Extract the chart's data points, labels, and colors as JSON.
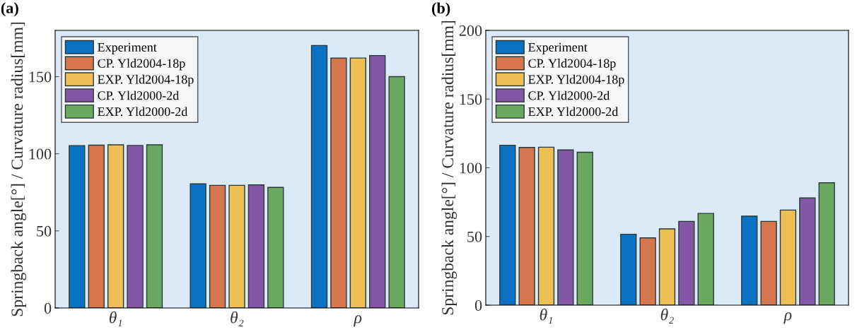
{
  "chart_data": [
    {
      "type": "bar",
      "title": "(a)",
      "ylabel": "Springback angle[°] / Curvature radius[mm]",
      "categories": [
        "θ₁",
        "θ₂",
        "ρ"
      ],
      "ylim": [
        0,
        180
      ],
      "yticks": [
        0,
        50,
        100,
        150
      ],
      "legend": "top left",
      "grid": false,
      "series": [
        {
          "name": "Experiment",
          "color": "#0a72c2",
          "values": [
            105.3,
            80.5,
            170.2
          ]
        },
        {
          "name": "CP. Yld2004-18p",
          "color": "#d5764c",
          "values": [
            105.6,
            79.5,
            162
          ]
        },
        {
          "name": "EXP. Yld2004-18p",
          "color": "#eebf55",
          "values": [
            105.8,
            79.5,
            162.1
          ]
        },
        {
          "name": "CP. Yld2000-2d",
          "color": "#8456a6",
          "values": [
            105.4,
            79.8,
            163.7
          ]
        },
        {
          "name": "EXP. Yld2000-2d",
          "color": "#6aa860",
          "values": [
            105.8,
            78.2,
            150
          ]
        }
      ]
    },
    {
      "type": "bar",
      "title": "(b)",
      "ylabel": "Springback angle[°] / Curvature radius[mm]",
      "categories": [
        "θ₁",
        "θ₂",
        "ρ"
      ],
      "ylim": [
        0,
        200
      ],
      "yticks": [
        0,
        50,
        100,
        150,
        200
      ],
      "legend": "top left",
      "grid": false,
      "series": [
        {
          "name": "Experiment",
          "color": "#0a72c2",
          "values": [
            116.4,
            51.6,
            64.8
          ]
        },
        {
          "name": "CP. Yld2004-18p",
          "color": "#d5764c",
          "values": [
            114.8,
            49,
            61
          ]
        },
        {
          "name": "EXP. Yld2004-18p",
          "color": "#eebf55",
          "values": [
            115,
            55.5,
            69.2
          ]
        },
        {
          "name": "CP. Yld2000-2d",
          "color": "#8456a6",
          "values": [
            113,
            61,
            78
          ]
        },
        {
          "name": "EXP. Yld2000-2d",
          "color": "#6aa860",
          "values": [
            111.3,
            66.8,
            89.1
          ]
        }
      ]
    }
  ]
}
